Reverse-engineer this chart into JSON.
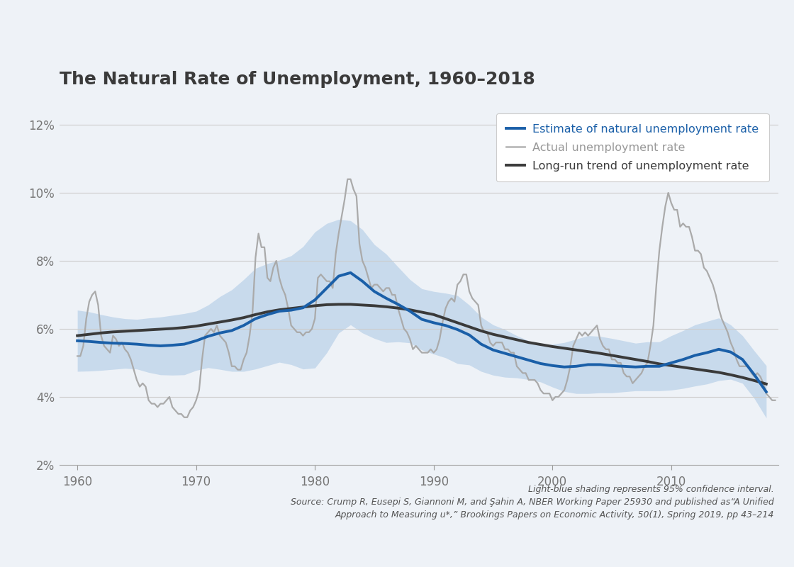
{
  "title": "The Natural Rate of Unemployment, 1960–2018",
  "background_color": "#eef2f7",
  "plot_bg_color": "#eef2f7",
  "title_color": "#3a3a3a",
  "estimate_color": "#1a5fa8",
  "actual_color": "#aaaaaa",
  "trend_color": "#3a3a3a",
  "ci_color": "#b8d0e8",
  "ci_alpha": 0.7,
  "xlim": [
    1958.5,
    2019.0
  ],
  "ylim": [
    2.0,
    12.5
  ],
  "ytick_vals": [
    2,
    4,
    6,
    8,
    10,
    12
  ],
  "ylabel_ticks": [
    "2%",
    "4%",
    "6%",
    "8%",
    "10%",
    "12%"
  ],
  "xtick_vals": [
    1960,
    1970,
    1980,
    1990,
    2000,
    2010
  ],
  "footnote_line1": "Light-blue shading represents 95% confidence interval.",
  "footnote_line2": "Source: Crump R, Eusepi S, Giannoni M, and Şahin A, NBER Working Paper 25930 and published as“A Unified",
  "footnote_line3": "Approach to Measuring u*,” Brookings Papers on Economic Activity, 50(1), Spring 2019, pp 43–214",
  "actual_x": [
    1960.0,
    1960.25,
    1960.5,
    1960.75,
    1961.0,
    1961.25,
    1961.5,
    1961.75,
    1962.0,
    1962.25,
    1962.5,
    1962.75,
    1963.0,
    1963.25,
    1963.5,
    1963.75,
    1964.0,
    1964.25,
    1964.5,
    1964.75,
    1965.0,
    1965.25,
    1965.5,
    1965.75,
    1966.0,
    1966.25,
    1966.5,
    1966.75,
    1967.0,
    1967.25,
    1967.5,
    1967.75,
    1968.0,
    1968.25,
    1968.5,
    1968.75,
    1969.0,
    1969.25,
    1969.5,
    1969.75,
    1970.0,
    1970.25,
    1970.5,
    1970.75,
    1971.0,
    1971.25,
    1971.5,
    1971.75,
    1972.0,
    1972.25,
    1972.5,
    1972.75,
    1973.0,
    1973.25,
    1973.5,
    1973.75,
    1974.0,
    1974.25,
    1974.5,
    1974.75,
    1975.0,
    1975.25,
    1975.5,
    1975.75,
    1976.0,
    1976.25,
    1976.5,
    1976.75,
    1977.0,
    1977.25,
    1977.5,
    1977.75,
    1978.0,
    1978.25,
    1978.5,
    1978.75,
    1979.0,
    1979.25,
    1979.5,
    1979.75,
    1980.0,
    1980.25,
    1980.5,
    1980.75,
    1981.0,
    1981.25,
    1981.5,
    1981.75,
    1982.0,
    1982.25,
    1982.5,
    1982.75,
    1983.0,
    1983.25,
    1983.5,
    1983.75,
    1984.0,
    1984.25,
    1984.5,
    1984.75,
    1985.0,
    1985.25,
    1985.5,
    1985.75,
    1986.0,
    1986.25,
    1986.5,
    1986.75,
    1987.0,
    1987.25,
    1987.5,
    1987.75,
    1988.0,
    1988.25,
    1988.5,
    1988.75,
    1989.0,
    1989.25,
    1989.5,
    1989.75,
    1990.0,
    1990.25,
    1990.5,
    1990.75,
    1991.0,
    1991.25,
    1991.5,
    1991.75,
    1992.0,
    1992.25,
    1992.5,
    1992.75,
    1993.0,
    1993.25,
    1993.5,
    1993.75,
    1994.0,
    1994.25,
    1994.5,
    1994.75,
    1995.0,
    1995.25,
    1995.5,
    1995.75,
    1996.0,
    1996.25,
    1996.5,
    1996.75,
    1997.0,
    1997.25,
    1997.5,
    1997.75,
    1998.0,
    1998.25,
    1998.5,
    1998.75,
    1999.0,
    1999.25,
    1999.5,
    1999.75,
    2000.0,
    2000.25,
    2000.5,
    2000.75,
    2001.0,
    2001.25,
    2001.5,
    2001.75,
    2002.0,
    2002.25,
    2002.5,
    2002.75,
    2003.0,
    2003.25,
    2003.5,
    2003.75,
    2004.0,
    2004.25,
    2004.5,
    2004.75,
    2005.0,
    2005.25,
    2005.5,
    2005.75,
    2006.0,
    2006.25,
    2006.5,
    2006.75,
    2007.0,
    2007.25,
    2007.5,
    2007.75,
    2008.0,
    2008.25,
    2008.5,
    2008.75,
    2009.0,
    2009.25,
    2009.5,
    2009.75,
    2010.0,
    2010.25,
    2010.5,
    2010.75,
    2011.0,
    2011.25,
    2011.5,
    2011.75,
    2012.0,
    2012.25,
    2012.5,
    2012.75,
    2013.0,
    2013.25,
    2013.5,
    2013.75,
    2014.0,
    2014.25,
    2014.5,
    2014.75,
    2015.0,
    2015.25,
    2015.5,
    2015.75,
    2016.0,
    2016.25,
    2016.5,
    2016.75,
    2017.0,
    2017.25,
    2017.5,
    2017.75,
    2018.0,
    2018.25,
    2018.5,
    2018.75
  ],
  "actual_y": [
    5.2,
    5.2,
    5.5,
    6.3,
    6.8,
    7.0,
    7.1,
    6.7,
    5.8,
    5.5,
    5.4,
    5.3,
    5.8,
    5.7,
    5.5,
    5.6,
    5.4,
    5.3,
    5.1,
    4.8,
    4.5,
    4.3,
    4.4,
    4.3,
    3.9,
    3.8,
    3.8,
    3.7,
    3.8,
    3.8,
    3.9,
    4.0,
    3.7,
    3.6,
    3.5,
    3.5,
    3.4,
    3.4,
    3.6,
    3.7,
    3.9,
    4.2,
    5.1,
    5.8,
    5.9,
    6.0,
    5.9,
    6.1,
    5.8,
    5.7,
    5.6,
    5.3,
    4.9,
    4.9,
    4.8,
    4.8,
    5.1,
    5.3,
    5.8,
    6.5,
    8.1,
    8.8,
    8.4,
    8.4,
    7.5,
    7.4,
    7.8,
    8.0,
    7.5,
    7.2,
    7.0,
    6.6,
    6.1,
    6.0,
    5.9,
    5.9,
    5.8,
    5.9,
    5.9,
    6.0,
    6.3,
    7.5,
    7.6,
    7.5,
    7.4,
    7.4,
    7.2,
    8.2,
    8.8,
    9.3,
    9.8,
    10.4,
    10.4,
    10.1,
    9.9,
    8.5,
    8.0,
    7.8,
    7.5,
    7.2,
    7.3,
    7.3,
    7.2,
    7.1,
    7.2,
    7.2,
    7.0,
    7.0,
    6.6,
    6.3,
    6.0,
    5.9,
    5.7,
    5.4,
    5.5,
    5.4,
    5.3,
    5.3,
    5.3,
    5.4,
    5.3,
    5.4,
    5.7,
    6.2,
    6.6,
    6.8,
    6.9,
    6.8,
    7.3,
    7.4,
    7.6,
    7.6,
    7.1,
    6.9,
    6.8,
    6.7,
    6.1,
    5.9,
    5.9,
    5.6,
    5.5,
    5.6,
    5.6,
    5.6,
    5.4,
    5.4,
    5.3,
    5.3,
    4.9,
    4.8,
    4.7,
    4.7,
    4.5,
    4.5,
    4.5,
    4.4,
    4.2,
    4.1,
    4.1,
    4.1,
    3.9,
    4.0,
    4.0,
    4.1,
    4.2,
    4.5,
    4.9,
    5.5,
    5.7,
    5.9,
    5.8,
    5.9,
    5.8,
    5.9,
    6.0,
    6.1,
    5.7,
    5.5,
    5.4,
    5.4,
    5.1,
    5.1,
    5.0,
    5.0,
    4.7,
    4.6,
    4.6,
    4.4,
    4.5,
    4.6,
    4.7,
    4.9,
    5.0,
    5.5,
    6.1,
    7.3,
    8.3,
    9.0,
    9.6,
    10.0,
    9.7,
    9.5,
    9.5,
    9.0,
    9.1,
    9.0,
    9.0,
    8.7,
    8.3,
    8.3,
    8.2,
    7.8,
    7.7,
    7.5,
    7.3,
    7.0,
    6.6,
    6.3,
    6.1,
    5.9,
    5.6,
    5.4,
    5.1,
    4.9,
    4.9,
    4.9,
    4.9,
    4.7,
    4.6,
    4.7,
    4.6,
    4.4,
    4.1,
    4.0,
    3.9,
    3.9
  ],
  "smooth_x": [
    1960,
    1961,
    1962,
    1963,
    1964,
    1965,
    1966,
    1967,
    1968,
    1969,
    1970,
    1971,
    1972,
    1973,
    1974,
    1975,
    1976,
    1977,
    1978,
    1979,
    1980,
    1981,
    1982,
    1983,
    1984,
    1985,
    1986,
    1987,
    1988,
    1989,
    1990,
    1991,
    1992,
    1993,
    1994,
    1995,
    1996,
    1997,
    1998,
    1999,
    2000,
    2001,
    2002,
    2003,
    2004,
    2005,
    2006,
    2007,
    2008,
    2009,
    2010,
    2011,
    2012,
    2013,
    2014,
    2015,
    2016,
    2017,
    2018
  ],
  "estimate": [
    5.65,
    5.63,
    5.6,
    5.58,
    5.57,
    5.55,
    5.52,
    5.5,
    5.52,
    5.55,
    5.65,
    5.78,
    5.88,
    5.95,
    6.1,
    6.3,
    6.42,
    6.52,
    6.55,
    6.62,
    6.85,
    7.2,
    7.55,
    7.65,
    7.4,
    7.1,
    6.9,
    6.72,
    6.52,
    6.28,
    6.18,
    6.1,
    5.98,
    5.82,
    5.55,
    5.38,
    5.28,
    5.18,
    5.08,
    4.98,
    4.92,
    4.88,
    4.9,
    4.95,
    4.95,
    4.92,
    4.9,
    4.88,
    4.9,
    4.9,
    5.0,
    5.1,
    5.22,
    5.3,
    5.4,
    5.32,
    5.1,
    4.65,
    4.15
  ],
  "ci_upper": [
    6.55,
    6.5,
    6.42,
    6.35,
    6.3,
    6.28,
    6.32,
    6.35,
    6.4,
    6.45,
    6.52,
    6.7,
    6.95,
    7.15,
    7.45,
    7.78,
    7.92,
    8.02,
    8.15,
    8.42,
    8.85,
    9.1,
    9.22,
    9.18,
    8.92,
    8.48,
    8.2,
    7.82,
    7.45,
    7.18,
    7.1,
    7.05,
    6.98,
    6.7,
    6.35,
    6.12,
    5.98,
    5.8,
    5.65,
    5.52,
    5.55,
    5.6,
    5.7,
    5.8,
    5.78,
    5.72,
    5.65,
    5.58,
    5.62,
    5.62,
    5.8,
    5.95,
    6.12,
    6.22,
    6.32,
    6.12,
    5.8,
    5.35,
    4.92
  ],
  "ci_lower": [
    4.75,
    4.76,
    4.78,
    4.81,
    4.84,
    4.82,
    4.72,
    4.65,
    4.64,
    4.65,
    4.78,
    4.86,
    4.81,
    4.75,
    4.75,
    4.82,
    4.92,
    5.02,
    4.95,
    4.82,
    4.85,
    5.3,
    5.88,
    6.12,
    5.88,
    5.72,
    5.6,
    5.62,
    5.59,
    5.38,
    5.26,
    5.15,
    4.98,
    4.94,
    4.75,
    4.64,
    4.58,
    4.56,
    4.51,
    4.44,
    4.29,
    4.16,
    4.1,
    4.1,
    4.12,
    4.12,
    4.15,
    4.18,
    4.18,
    4.18,
    4.2,
    4.25,
    4.32,
    4.38,
    4.48,
    4.52,
    4.4,
    3.95,
    3.38
  ],
  "trend": [
    5.8,
    5.84,
    5.88,
    5.91,
    5.93,
    5.95,
    5.97,
    5.99,
    6.01,
    6.04,
    6.08,
    6.14,
    6.2,
    6.26,
    6.33,
    6.42,
    6.5,
    6.56,
    6.6,
    6.64,
    6.68,
    6.71,
    6.72,
    6.72,
    6.7,
    6.68,
    6.65,
    6.61,
    6.56,
    6.49,
    6.42,
    6.3,
    6.18,
    6.06,
    5.94,
    5.84,
    5.76,
    5.68,
    5.6,
    5.54,
    5.48,
    5.43,
    5.38,
    5.33,
    5.28,
    5.22,
    5.16,
    5.1,
    5.04,
    4.97,
    4.92,
    4.87,
    4.82,
    4.77,
    4.72,
    4.65,
    4.57,
    4.48,
    4.38
  ]
}
